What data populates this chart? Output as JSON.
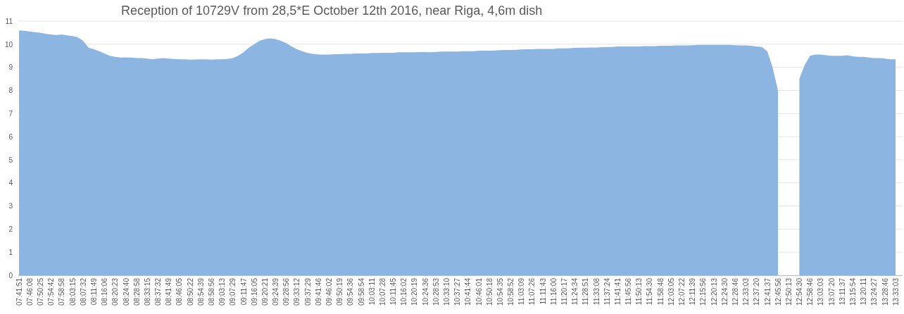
{
  "chart_data": {
    "type": "area",
    "title": "Reception of 10729V from 28,5*E October 12th 2016, near Riga, 4,6m dish",
    "categories": [
      "07:41:51",
      null,
      "07:46:08",
      null,
      "07:50:25",
      null,
      "07:54:42",
      null,
      "07:58:58",
      null,
      "08:03:15",
      null,
      "08:07:32",
      null,
      "08:11:49",
      null,
      "08:16:06",
      null,
      "08:20:23",
      null,
      "08:24:40",
      null,
      "08:28:58",
      null,
      "08:33:15",
      null,
      "08:37:32",
      null,
      "08:41:49",
      null,
      "08:46:05",
      null,
      "08:50:22",
      null,
      "08:54:39",
      null,
      "08:58:56",
      null,
      "09:03:13",
      null,
      "09:07:29",
      null,
      "09:11:47",
      null,
      "09:16:05",
      null,
      "09:20:21",
      null,
      "09:24:39",
      null,
      "09:28:56",
      null,
      "09:33:12",
      null,
      "09:37:29",
      null,
      "09:41:46",
      null,
      "09:46:02",
      null,
      "09:50:19",
      null,
      "09:54:36",
      null,
      "09:58:54",
      null,
      "10:03:11",
      null,
      "10:07:28",
      null,
      "10:11:45",
      null,
      "10:16:02",
      null,
      "10:20:19",
      null,
      "10:24:36",
      null,
      "10:28:53",
      null,
      "10:33:10",
      null,
      "10:37:27",
      null,
      "10:41:44",
      null,
      "10:46:01",
      null,
      "10:50:18",
      null,
      "10:54:35",
      null,
      "10:58:52",
      null,
      "11:03:09",
      null,
      "11:07:26",
      null,
      "11:11:43",
      null,
      "11:16:00",
      null,
      "11:20:17",
      null,
      "11:24:34",
      null,
      "11:28:51",
      null,
      "11:33:08",
      null,
      "11:37:24",
      null,
      "11:41:41",
      null,
      "11:45:56",
      null,
      "11:50:13",
      null,
      "11:54:30",
      null,
      "11:58:48",
      null,
      "12:03:05",
      null,
      "12:07:22",
      null,
      "12:11:39",
      null,
      "12:15:56",
      null,
      "12:20:13",
      null,
      "12:24:30",
      null,
      "12:28:46",
      null,
      "12:33:03",
      null,
      "12:37:20",
      null,
      "12:41:37",
      null,
      "12:45:56",
      null,
      "12:50:13",
      null,
      "12:54:30",
      null,
      "12:58:46",
      null,
      "13:03:03",
      null,
      "13:07:20",
      null,
      "13:11:37",
      null,
      "13:15:54",
      null,
      "13:20:11",
      null,
      "13:24:27",
      null,
      "13:28:46",
      null,
      "13:33:03"
    ],
    "color": "#8cb6e1",
    "values": [
      10.6,
      10.58,
      10.55,
      10.52,
      10.5,
      10.45,
      10.42,
      10.4,
      10.42,
      10.38,
      10.35,
      10.3,
      10.15,
      9.85,
      9.78,
      9.7,
      9.6,
      9.5,
      9.45,
      9.42,
      9.43,
      9.42,
      9.4,
      9.4,
      9.38,
      9.35,
      9.38,
      9.4,
      9.38,
      9.36,
      9.35,
      9.35,
      9.33,
      9.34,
      9.35,
      9.35,
      9.33,
      9.35,
      9.35,
      9.36,
      9.4,
      9.5,
      9.65,
      9.85,
      10.0,
      10.15,
      10.22,
      10.25,
      10.22,
      10.15,
      10.05,
      9.9,
      9.78,
      9.7,
      9.62,
      9.58,
      9.55,
      9.55,
      9.55,
      9.57,
      9.57,
      9.58,
      9.58,
      9.6,
      9.6,
      9.6,
      9.62,
      9.62,
      9.63,
      9.63,
      9.63,
      9.65,
      9.65,
      9.65,
      9.65,
      9.66,
      9.66,
      9.65,
      9.67,
      9.68,
      9.68,
      9.68,
      9.68,
      9.7,
      9.7,
      9.7,
      9.72,
      9.72,
      9.72,
      9.73,
      9.74,
      9.75,
      9.75,
      9.76,
      9.77,
      9.78,
      9.78,
      9.8,
      9.8,
      9.8,
      9.8,
      9.82,
      9.82,
      9.83,
      9.84,
      9.85,
      9.85,
      9.86,
      9.86,
      9.87,
      9.88,
      9.88,
      9.9,
      9.9,
      9.9,
      9.9,
      9.9,
      9.92,
      9.92,
      9.92,
      9.93,
      9.93,
      9.93,
      9.95,
      9.95,
      9.95,
      9.96,
      9.97,
      9.97,
      9.97,
      9.97,
      9.97,
      9.97,
      9.97,
      9.96,
      9.95,
      9.95,
      9.93,
      9.9,
      9.88,
      9.7,
      9.0,
      8.0,
      null,
      null,
      null,
      8.5,
      9.1,
      9.5,
      9.55,
      9.55,
      9.52,
      9.5,
      9.5,
      9.5,
      9.52,
      9.48,
      9.45,
      9.45,
      9.42,
      9.4,
      9.4,
      9.38,
      9.35,
      9.35
    ],
    "ylim": [
      0,
      11
    ],
    "yticks": [
      0,
      1,
      2,
      3,
      4,
      5,
      6,
      7,
      8,
      9,
      10,
      11
    ],
    "grid": "y"
  }
}
